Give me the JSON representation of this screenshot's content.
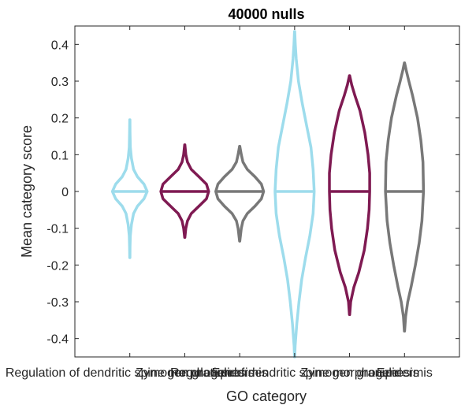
{
  "chart_data": {
    "type": "violin",
    "title": "40000 nulls",
    "xlabel": "GO category",
    "ylabel": "Mean category score",
    "ylim": [
      -0.45,
      0.45
    ],
    "yticks": [
      -0.4,
      -0.3,
      -0.2,
      -0.1,
      0,
      0.1,
      0.2,
      0.3,
      0.4
    ],
    "ytick_labels": [
      "-0.4",
      "-0.3",
      "-0.2",
      "-0.1",
      "0",
      "0.1",
      "0.2",
      "0.3",
      "0.4"
    ],
    "box": true,
    "grid": false,
    "categories": [
      "Regulation of dendritic spine morphogenesis",
      "Zymogen granule",
      "Epidermis",
      "Regulation of dendritic spine morphogenesis",
      "Zymogen granule",
      "Epidermis"
    ],
    "series": [
      {
        "category": "Regulation of dendritic spine morphogenesis",
        "color": "#9ddcec",
        "median": 0,
        "min": -0.18,
        "max": 0.195,
        "profile": [
          [
            -0.18,
            0.002
          ],
          [
            -0.15,
            0.004
          ],
          [
            -0.12,
            0.01
          ],
          [
            -0.09,
            0.03
          ],
          [
            -0.06,
            0.07
          ],
          [
            -0.04,
            0.14
          ],
          [
            -0.02,
            0.26
          ],
          [
            0,
            0.32
          ],
          [
            0.02,
            0.26
          ],
          [
            0.04,
            0.14
          ],
          [
            0.06,
            0.07
          ],
          [
            0.09,
            0.03
          ],
          [
            0.12,
            0.01
          ],
          [
            0.16,
            0.004
          ],
          [
            0.195,
            0.002
          ]
        ]
      },
      {
        "category": "Zymogen granule",
        "color": "#7f1a52",
        "median": 0,
        "min": -0.125,
        "max": 0.127,
        "profile": [
          [
            -0.125,
            0.002
          ],
          [
            -0.1,
            0.02
          ],
          [
            -0.08,
            0.05
          ],
          [
            -0.06,
            0.12
          ],
          [
            -0.04,
            0.26
          ],
          [
            -0.02,
            0.4
          ],
          [
            0,
            0.44
          ],
          [
            0.02,
            0.4
          ],
          [
            0.04,
            0.26
          ],
          [
            0.06,
            0.12
          ],
          [
            0.08,
            0.05
          ],
          [
            0.1,
            0.02
          ],
          [
            0.127,
            0.002
          ]
        ]
      },
      {
        "category": "Epidermis",
        "color": "#787878",
        "median": 0,
        "min": -0.135,
        "max": 0.123,
        "profile": [
          [
            -0.135,
            0.002
          ],
          [
            -0.1,
            0.03
          ],
          [
            -0.08,
            0.06
          ],
          [
            -0.06,
            0.14
          ],
          [
            -0.04,
            0.28
          ],
          [
            -0.02,
            0.4
          ],
          [
            0,
            0.44
          ],
          [
            0.02,
            0.4
          ],
          [
            0.04,
            0.28
          ],
          [
            0.06,
            0.14
          ],
          [
            0.08,
            0.06
          ],
          [
            0.1,
            0.03
          ],
          [
            0.123,
            0.002
          ]
        ]
      },
      {
        "category": "Regulation of dendritic spine morphogenesis",
        "color": "#9ddcec",
        "median": 0,
        "min": -0.45,
        "max": 0.435,
        "profile": [
          [
            -0.45,
            0.002
          ],
          [
            -0.42,
            0.01
          ],
          [
            -0.36,
            0.04
          ],
          [
            -0.3,
            0.08
          ],
          [
            -0.24,
            0.13
          ],
          [
            -0.18,
            0.2
          ],
          [
            -0.12,
            0.28
          ],
          [
            -0.06,
            0.34
          ],
          [
            0,
            0.36
          ],
          [
            0.06,
            0.34
          ],
          [
            0.12,
            0.3
          ],
          [
            0.18,
            0.22
          ],
          [
            0.24,
            0.14
          ],
          [
            0.3,
            0.07
          ],
          [
            0.36,
            0.03
          ],
          [
            0.4,
            0.012
          ],
          [
            0.435,
            0.002
          ]
        ]
      },
      {
        "category": "Zymogen granule",
        "color": "#7f1a52",
        "median": 0,
        "min": -0.335,
        "max": 0.315,
        "profile": [
          [
            -0.335,
            0.002
          ],
          [
            -0.3,
            0.02
          ],
          [
            -0.26,
            0.08
          ],
          [
            -0.22,
            0.17
          ],
          [
            -0.16,
            0.27
          ],
          [
            -0.1,
            0.33
          ],
          [
            -0.05,
            0.36
          ],
          [
            0,
            0.37
          ],
          [
            0.05,
            0.37
          ],
          [
            0.1,
            0.34
          ],
          [
            0.16,
            0.28
          ],
          [
            0.22,
            0.19
          ],
          [
            0.26,
            0.1
          ],
          [
            0.29,
            0.04
          ],
          [
            0.315,
            0.002
          ]
        ]
      },
      {
        "category": "Epidermis",
        "color": "#787878",
        "median": 0,
        "min": -0.38,
        "max": 0.35,
        "profile": [
          [
            -0.38,
            0.002
          ],
          [
            -0.34,
            0.02
          ],
          [
            -0.3,
            0.06
          ],
          [
            -0.26,
            0.12
          ],
          [
            -0.2,
            0.2
          ],
          [
            -0.14,
            0.27
          ],
          [
            -0.08,
            0.32
          ],
          [
            0,
            0.35
          ],
          [
            0.08,
            0.34
          ],
          [
            0.14,
            0.3
          ],
          [
            0.2,
            0.24
          ],
          [
            0.26,
            0.15
          ],
          [
            0.3,
            0.08
          ],
          [
            0.33,
            0.03
          ],
          [
            0.35,
            0.002
          ]
        ]
      }
    ]
  }
}
